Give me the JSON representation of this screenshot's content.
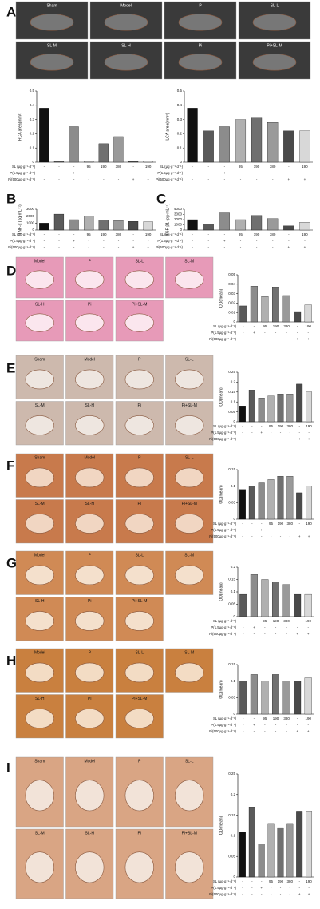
{
  "panels": [
    {
      "letter": "A",
      "images": [
        "Sham",
        "Model",
        "P",
        "SL-L",
        "SL-M",
        "SL-H",
        "Pi",
        "Pi+SL-M"
      ]
    },
    {
      "letter": "B",
      "images": []
    },
    {
      "letter": "C",
      "images": []
    },
    {
      "letter": "D",
      "images": [
        "Model",
        "P",
        "SL-L",
        "SL-M",
        "SL-H",
        "Pi",
        "Pi+SL-M"
      ]
    },
    {
      "letter": "E",
      "images": [
        "Sham",
        "Model",
        "P",
        "SL-L",
        "SL-M",
        "SL-H",
        "Pi",
        "Pi+SL-M"
      ]
    },
    {
      "letter": "F",
      "images": [
        "Sham",
        "Model",
        "P",
        "SL-L",
        "SL-M",
        "SL-H",
        "Pi",
        "Pi+SL-M"
      ]
    },
    {
      "letter": "G",
      "images": [
        "Model",
        "P",
        "SL-L",
        "SL-M",
        "SL-H",
        "Pi",
        "Pi+SL-M"
      ]
    },
    {
      "letter": "H",
      "images": [
        "Model",
        "P",
        "SL-L",
        "SL-M",
        "SL-H",
        "Pi",
        "Pi+SL-M"
      ]
    },
    {
      "letter": "I",
      "images": [
        "Sham",
        "Model",
        "P",
        "SL-L",
        "SL-M",
        "SL-H",
        "Pi",
        "Pi+SL-M"
      ]
    }
  ],
  "treatments": {
    "rows": [
      {
        "label": "SL (μg·g⁻¹·d⁻¹)",
        "cells": [
          "-",
          "-",
          "-",
          "95",
          "190",
          "380",
          "-",
          "190"
        ]
      },
      {
        "label": "P(1.5μg·g⁻¹·d⁻¹)",
        "cells": [
          "-",
          "-",
          "+",
          "-",
          "-",
          "-",
          "-",
          "-"
        ]
      },
      {
        "label": "Pi(500μg·g⁻¹·d⁻¹)",
        "cells": [
          "-",
          "-",
          "-",
          "-",
          "-",
          "-",
          "+",
          "+"
        ]
      }
    ]
  },
  "bar_colors": [
    "#111111",
    "#5a5a5a",
    "#8c8c8c",
    "#b0b0b0",
    "#707070",
    "#9a9a9a",
    "#4a4a4a",
    "#d8d8d8"
  ],
  "chart_data": [
    {
      "type": "bar",
      "ylabel": "RCA area(mm²)",
      "values": [
        0.38,
        0.01,
        0.25,
        0.01,
        0.13,
        0.18,
        0.01,
        0.01
      ],
      "ylim": [
        0,
        0.5
      ],
      "yticks": [
        0,
        0.1,
        0.2,
        0.3,
        0.4,
        0.5
      ]
    },
    {
      "type": "bar",
      "ylabel": "LCA area(mm²)",
      "values": [
        0.38,
        0.22,
        0.25,
        0.3,
        0.31,
        0.28,
        0.22,
        0.22
      ],
      "ylim": [
        0,
        0.5
      ],
      "yticks": [
        0,
        0.1,
        0.2,
        0.3,
        0.4,
        0.5
      ]
    },
    {
      "type": "bar",
      "ylabel": "TNF-α (pg·mL⁻¹)",
      "values": [
        1000,
        2300,
        1500,
        2000,
        1450,
        1350,
        1250,
        1200
      ],
      "ylim": [
        0,
        3000
      ],
      "yticks": [
        0,
        1000,
        2000,
        3000
      ]
    },
    {
      "type": "bar",
      "ylabel": "TGF-β1 (pg·mL⁻¹)",
      "values": [
        2000,
        1200,
        3300,
        2000,
        2800,
        2200,
        800,
        1500
      ],
      "ylim": [
        0,
        4000
      ],
      "yticks": [
        0,
        1000,
        2000,
        3000,
        4000
      ]
    },
    {
      "type": "bar",
      "ylabel": "OD(mean)",
      "values": [
        0.017,
        0.038,
        0.027,
        0.037,
        0.028,
        0.011,
        0.018
      ],
      "ylim": [
        0,
        0.05
      ],
      "yticks": [
        0,
        0.01,
        0.02,
        0.03,
        0.04,
        0.05
      ]
    },
    {
      "type": "bar",
      "ylabel": "OD(mean)",
      "values": [
        0.08,
        0.16,
        0.12,
        0.13,
        0.14,
        0.14,
        0.19,
        0.15
      ],
      "ylim": [
        0,
        0.25
      ],
      "yticks": [
        0,
        0.05,
        0.1,
        0.15,
        0.2,
        0.25
      ]
    },
    {
      "type": "bar",
      "ylabel": "OD(mean)",
      "values": [
        0.09,
        0.1,
        0.11,
        0.12,
        0.13,
        0.13,
        0.08,
        0.1
      ],
      "ylim": [
        0,
        0.15
      ],
      "yticks": [
        0,
        0.05,
        0.1,
        0.15
      ]
    },
    {
      "type": "bar",
      "ylabel": "OD(mean)",
      "values": [
        0.09,
        0.17,
        0.15,
        0.14,
        0.13,
        0.09,
        0.09
      ],
      "ylim": [
        0,
        0.2
      ],
      "yticks": [
        0,
        0.05,
        0.1,
        0.15,
        0.2
      ]
    },
    {
      "type": "bar",
      "ylabel": "OD(mean)",
      "values": [
        0.1,
        0.12,
        0.1,
        0.12,
        0.1,
        0.1,
        0.11
      ],
      "ylim": [
        0,
        0.15
      ],
      "yticks": [
        0,
        0.05,
        0.1,
        0.15
      ]
    },
    {
      "type": "bar",
      "ylabel": "OD(mean)",
      "values": [
        0.11,
        0.17,
        0.08,
        0.13,
        0.12,
        0.13,
        0.16,
        0.16
      ],
      "ylim": [
        0,
        0.25
      ],
      "yticks": [
        0,
        0.05,
        0.1,
        0.15,
        0.2,
        0.25
      ]
    }
  ]
}
